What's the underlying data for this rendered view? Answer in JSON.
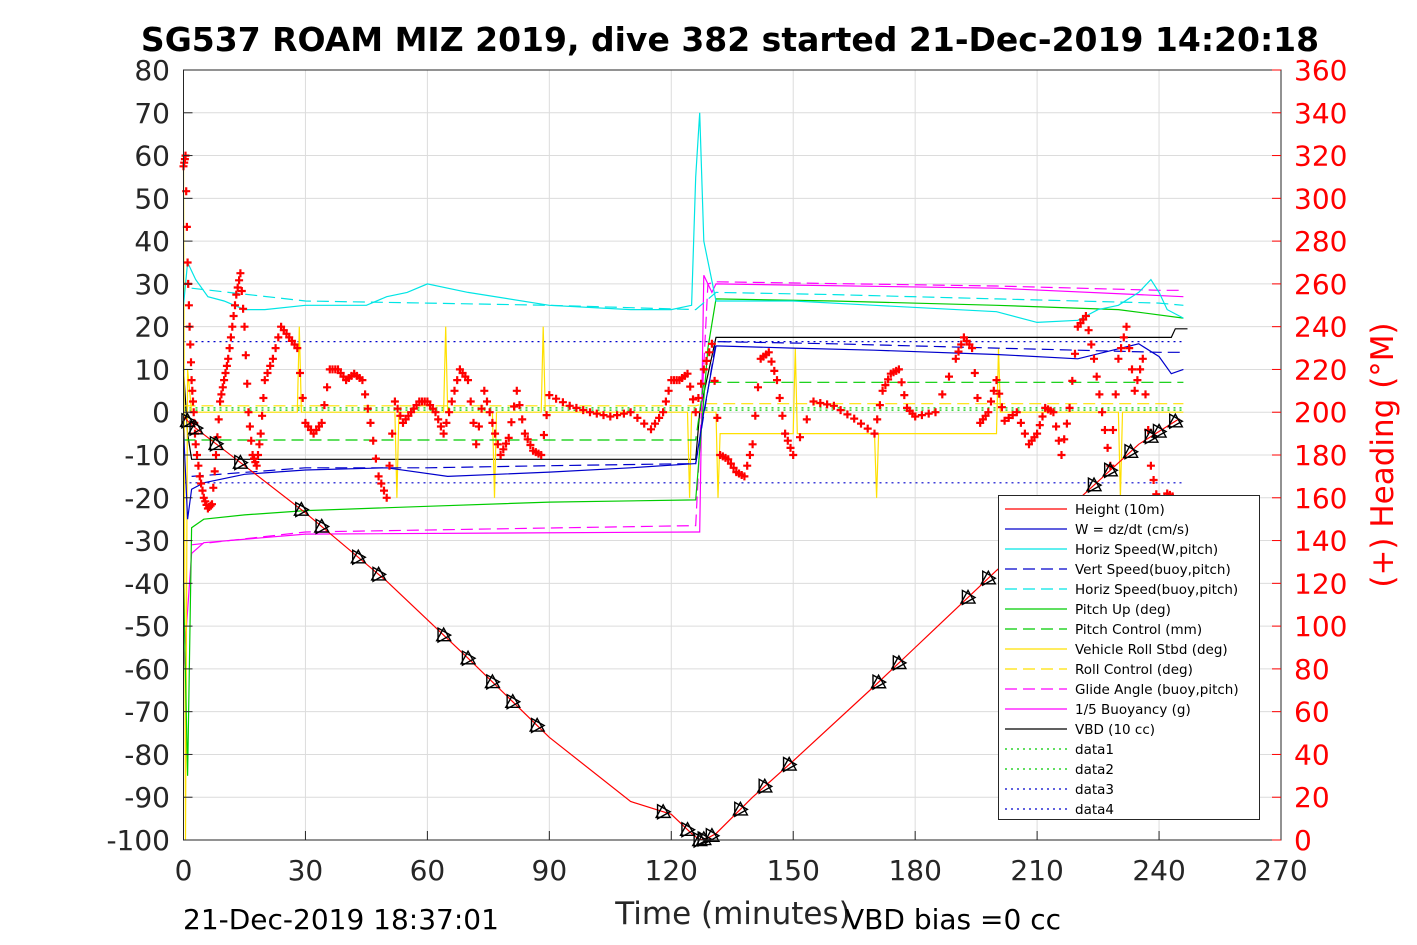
{
  "chart_data": {
    "type": "line",
    "title": "SG537 ROAM MIZ 2019, dive 382 started 21-Dec-2019 14:20:18",
    "xlabel": "Time (minutes)",
    "ylabel_right": "(+) Heading (°M)",
    "footer_left": "21-Dec-2019 18:37:01",
    "footer_right": "VBD bias =0 cc",
    "xlim": [
      0,
      270
    ],
    "ylim": [
      -100,
      80
    ],
    "ylim_right": [
      0,
      360
    ],
    "xticks": [
      0,
      30,
      60,
      90,
      120,
      150,
      180,
      210,
      240,
      270
    ],
    "yticks": [
      80,
      70,
      60,
      50,
      40,
      30,
      20,
      10,
      0,
      -10,
      -20,
      -30,
      -40,
      -50,
      -60,
      -70,
      -80,
      -90,
      -100
    ],
    "yticks_right": [
      360,
      340,
      320,
      300,
      280,
      260,
      240,
      220,
      200,
      180,
      160,
      140,
      120,
      100,
      80,
      60,
      40,
      20,
      0
    ],
    "grid": true,
    "legend_position": "bottom-right",
    "legend": [
      {
        "label": "Height (10m)",
        "color": "#ff0000",
        "dash": "solid"
      },
      {
        "label": "W = dz/dt (cm/s)",
        "color": "#0000cc",
        "dash": "solid"
      },
      {
        "label": "Horiz Speed(W,pitch)",
        "color": "#00e5e5",
        "dash": "solid"
      },
      {
        "label": "Vert Speed(buoy,pitch)",
        "color": "#0000cc",
        "dash": "dashed"
      },
      {
        "label": "Horiz Speed(buoy,pitch)",
        "color": "#00e5e5",
        "dash": "dashed"
      },
      {
        "label": "Pitch Up (deg)",
        "color": "#00cc00",
        "dash": "solid"
      },
      {
        "label": "Pitch Control (mm)",
        "color": "#00cc00",
        "dash": "dashed"
      },
      {
        "label": "Vehicle Roll Stbd (deg)",
        "color": "#ffe000",
        "dash": "solid"
      },
      {
        "label": "Roll Control (deg)",
        "color": "#ffe000",
        "dash": "dashed"
      },
      {
        "label": "Glide Angle (buoy,pitch)",
        "color": "#ff00ff",
        "dash": "dashed"
      },
      {
        "label": "1/5 Buoyancy (g)",
        "color": "#ff00ff",
        "dash": "solid"
      },
      {
        "label": "VBD (10 cc)",
        "color": "#000000",
        "dash": "solid"
      },
      {
        "label": "data1",
        "color": "#00cc00",
        "dash": "dotted"
      },
      {
        "label": "data2",
        "color": "#00cc00",
        "dash": "dotted"
      },
      {
        "label": "data3",
        "color": "#0000cc",
        "dash": "dotted"
      },
      {
        "label": "data4",
        "color": "#0000cc",
        "dash": "dotted"
      }
    ],
    "series": [
      {
        "name": "Height (10m)",
        "color": "#ff0000",
        "dash": "solid",
        "x": [
          0,
          2,
          15,
          30,
          50,
          70,
          90,
          110,
          120,
          125,
          127,
          129,
          131,
          140,
          150,
          170,
          180,
          200,
          220,
          235,
          245
        ],
        "y": [
          -1,
          -3,
          -12.5,
          -23.5,
          -39.5,
          -57.5,
          -76,
          -91,
          -94,
          -98.5,
          -100,
          -99.5,
          -98.5,
          -90,
          -81.5,
          -64,
          -55,
          -37,
          -20.5,
          -7.5,
          -1.5
        ]
      },
      {
        "name": "W = dz/dt (cm/s)",
        "color": "#0000cc",
        "dash": "solid",
        "x": [
          0,
          1,
          2,
          5,
          15,
          30,
          50,
          65,
          90,
          110,
          126,
          128,
          131,
          150,
          170,
          200,
          220,
          235,
          240,
          243,
          246
        ],
        "y": [
          -4,
          -25,
          -18,
          -16.5,
          -14.5,
          -13.5,
          -13,
          -15,
          -14,
          -13,
          -12,
          0,
          15.5,
          15,
          14.5,
          13.5,
          12.5,
          16,
          13,
          9,
          10
        ]
      },
      {
        "name": "Horiz Speed(W,pitch)",
        "color": "#00e5e5",
        "dash": "solid",
        "x": [
          0,
          1,
          3,
          6,
          10,
          15,
          20,
          30,
          45,
          50,
          55,
          60,
          70,
          90,
          110,
          120,
          125,
          126,
          127,
          128,
          131,
          150,
          170,
          200,
          210,
          220,
          225,
          230,
          235,
          238,
          240,
          242,
          246
        ],
        "y": [
          25,
          35,
          31,
          27,
          26,
          24,
          24,
          25,
          25,
          27,
          28,
          30,
          28,
          25,
          24,
          24,
          25,
          55,
          70,
          40,
          26,
          26,
          25,
          23.5,
          21,
          21.5,
          24,
          25,
          28,
          31,
          28,
          24,
          22
        ]
      },
      {
        "name": "Vert Speed(buoy,pitch)",
        "color": "#0000cc",
        "dash": "dashed",
        "x": [
          2,
          30,
          60,
          90,
          126,
          131,
          160,
          200,
          240,
          246
        ],
        "y": [
          -15,
          -13,
          -13,
          -12.5,
          -12,
          16.5,
          16,
          15,
          14,
          14
        ]
      },
      {
        "name": "Horiz Speed(buoy,pitch)",
        "color": "#00e5e5",
        "dash": "dashed",
        "x": [
          2,
          30,
          60,
          90,
          126,
          131,
          160,
          200,
          240,
          246
        ],
        "y": [
          29,
          26,
          25.5,
          25,
          24,
          28,
          27.5,
          26.5,
          25.5,
          25
        ]
      },
      {
        "name": "Pitch Up (deg)",
        "color": "#00cc00",
        "dash": "solid",
        "x": [
          0,
          1,
          2,
          5,
          15,
          30,
          60,
          90,
          126,
          129,
          131,
          160,
          200,
          230,
          246
        ],
        "y": [
          -40,
          -85,
          -27,
          -25,
          -24,
          -23,
          -22,
          -21,
          -20.5,
          15,
          26.5,
          26,
          25,
          24,
          22
        ]
      },
      {
        "name": "Pitch Control (mm)",
        "color": "#00cc00",
        "dash": "dashed",
        "x": [
          0,
          126,
          128,
          246
        ],
        "y": [
          -6.5,
          -6.5,
          7,
          7
        ]
      },
      {
        "name": "Vehicle Roll Stbd (deg)",
        "color": "#ffe000",
        "dash": "solid",
        "x": [
          0,
          0.5,
          1,
          2,
          28,
          28.5,
          29,
          52,
          52.5,
          53,
          64,
          64.5,
          65,
          76,
          76.5,
          77,
          88,
          88.5,
          89,
          124,
          124.5,
          125,
          131,
          131.5,
          132,
          150,
          150.5,
          151,
          170,
          170.5,
          171,
          200,
          200.5,
          201,
          230,
          230.5,
          231,
          246
        ],
        "y": [
          60,
          -100,
          10,
          0,
          0,
          20,
          0,
          0,
          -20,
          0,
          0,
          20,
          0,
          0,
          -20,
          0,
          0,
          20,
          0,
          0,
          -20,
          0,
          0,
          -20,
          -5,
          -5,
          15,
          -5,
          -5,
          -20,
          -5,
          -5,
          15,
          0,
          0,
          -20,
          0,
          0
        ]
      },
      {
        "name": "Roll Control (deg)",
        "color": "#ffe000",
        "dash": "dashed",
        "x": [
          0,
          126,
          128,
          246
        ],
        "y": [
          1.5,
          1.5,
          2,
          2
        ]
      },
      {
        "name": "Glide Angle (buoy,pitch)",
        "color": "#ff00ff",
        "dash": "dashed",
        "x": [
          2,
          30,
          126,
          129,
          131,
          200,
          240,
          246
        ],
        "y": [
          -31,
          -28,
          -26.5,
          30,
          30.5,
          29.5,
          28.5,
          28.5
        ]
      },
      {
        "name": "1/5 Buoyancy (g)",
        "color": "#ff00ff",
        "dash": "solid",
        "x": [
          0,
          2,
          5,
          30,
          126,
          127,
          128,
          130,
          131,
          200,
          235,
          246
        ],
        "y": [
          -60,
          -33,
          -30.5,
          -28.5,
          -28,
          -28,
          32,
          28,
          30,
          29,
          27.5,
          27
        ]
      },
      {
        "name": "VBD (10 cc)",
        "color": "#000000",
        "dash": "solid",
        "x": [
          0,
          1,
          2,
          126,
          127,
          131,
          243,
          244,
          247
        ],
        "y": [
          10,
          -5,
          -11,
          -11,
          0,
          17.5,
          17.5,
          19.5,
          19.5
        ]
      },
      {
        "name": "data1",
        "color": "#00cc00",
        "dash": "dotted",
        "x": [
          0,
          246
        ],
        "y": [
          1,
          1
        ]
      },
      {
        "name": "data2",
        "color": "#00cc00",
        "dash": "dotted",
        "x": [
          0,
          246
        ],
        "y": [
          0.5,
          0.5
        ]
      },
      {
        "name": "data3",
        "color": "#0000cc",
        "dash": "dotted",
        "x": [
          0,
          246
        ],
        "y": [
          16.5,
          16.5
        ]
      },
      {
        "name": "data4",
        "color": "#0000cc",
        "dash": "dotted",
        "x": [
          0,
          246
        ],
        "y": [
          -16.5,
          -16.5
        ]
      }
    ],
    "heading": {
      "color": "#ff0000",
      "axis": "right",
      "x": [
        0,
        0.5,
        1,
        1.5,
        2,
        2.5,
        3,
        4,
        5,
        6,
        7,
        8,
        9,
        10,
        11,
        12,
        13,
        14,
        15,
        16,
        17,
        18,
        19,
        20,
        22,
        24,
        26,
        28,
        30,
        32,
        34,
        36,
        38,
        40,
        42,
        44,
        46,
        48,
        50,
        52,
        54,
        56,
        58,
        60,
        62,
        64,
        66,
        68,
        70,
        72,
        74,
        76,
        78,
        80,
        82,
        84,
        86,
        88,
        90,
        95,
        100,
        105,
        110,
        115,
        118,
        120,
        122,
        124,
        126,
        128,
        130,
        132,
        134,
        136,
        138,
        140,
        142,
        144,
        146,
        148,
        150,
        155,
        160,
        165,
        170,
        172,
        174,
        176,
        178,
        180,
        185,
        190,
        192,
        194,
        196,
        198,
        200,
        202,
        205,
        208,
        210,
        212,
        214,
        216,
        218,
        220,
        222,
        224,
        226,
        228,
        230,
        232,
        234,
        236,
        238,
        240,
        242,
        244
      ],
      "y": [
        315,
        320,
        270,
        240,
        215,
        200,
        185,
        170,
        160,
        155,
        157,
        180,
        205,
        215,
        225,
        240,
        255,
        265,
        240,
        200,
        180,
        175,
        190,
        215,
        225,
        240,
        235,
        230,
        195,
        190,
        195,
        220,
        220,
        215,
        218,
        215,
        195,
        170,
        160,
        205,
        195,
        200,
        205,
        205,
        200,
        190,
        205,
        220,
        215,
        185,
        210,
        195,
        180,
        188,
        210,
        190,
        182,
        180,
        208,
        203,
        200,
        198,
        200,
        192,
        200,
        215,
        215,
        218,
        200,
        220,
        232,
        180,
        178,
        172,
        170,
        185,
        225,
        228,
        215,
        190,
        180,
        205,
        203,
        197,
        190,
        210,
        218,
        220,
        202,
        198,
        200,
        225,
        235,
        230,
        195,
        200,
        215,
        196,
        200,
        185,
        190,
        202,
        200,
        180,
        202,
        240,
        245,
        225,
        200,
        175,
        225,
        240,
        210,
        225,
        175,
        155,
        162,
        160
      ]
    }
  }
}
